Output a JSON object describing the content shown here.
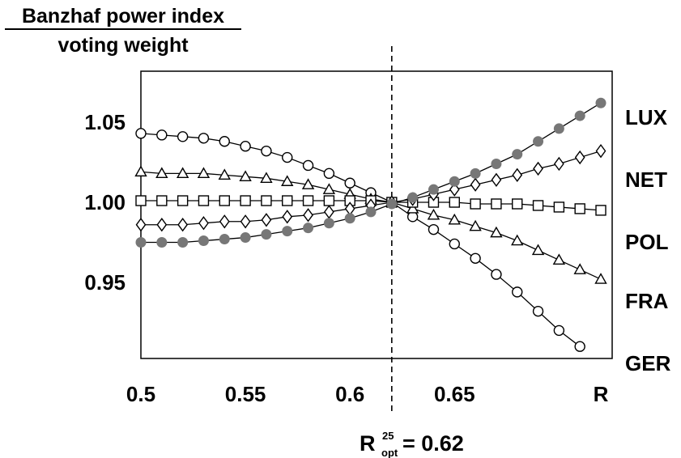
{
  "chart_data": {
    "type": "line",
    "ylabel_numerator": "Banzhaf power index",
    "ylabel_denominator": "voting weight",
    "xlim": [
      0.5,
      0.72
    ],
    "ylim": [
      0.91,
      1.08
    ],
    "x_ticks": [
      {
        "value": 0.5,
        "label": "0.5"
      },
      {
        "value": 0.55,
        "label": "0.55"
      },
      {
        "value": 0.6,
        "label": "0.6"
      },
      {
        "value": 0.65,
        "label": "0.65"
      },
      {
        "value": 0.72,
        "label": "R"
      }
    ],
    "y_ticks": [
      {
        "value": 1.05,
        "label": "1.05"
      },
      {
        "value": 1.0,
        "label": "1.00"
      },
      {
        "value": 0.95,
        "label": "0.95"
      }
    ],
    "optimal_line": {
      "x": 0.62,
      "label_base": "R",
      "label_sup": "25",
      "label_sub": "opt",
      "label_value": "= 0.62"
    },
    "x": [
      0.5,
      0.51,
      0.52,
      0.53,
      0.54,
      0.55,
      0.56,
      0.57,
      0.58,
      0.59,
      0.6,
      0.61,
      0.62,
      0.63,
      0.64,
      0.65,
      0.66,
      0.67,
      0.68,
      0.69,
      0.7,
      0.71,
      0.72
    ],
    "series": [
      {
        "name": "GER",
        "marker": "circle-open",
        "values": [
          1.043,
          1.042,
          1.041,
          1.04,
          1.038,
          1.035,
          1.032,
          1.028,
          1.023,
          1.018,
          1.012,
          1.006,
          1.0,
          0.991,
          0.983,
          0.974,
          0.965,
          0.955,
          0.944,
          0.932,
          0.92,
          0.91,
          0.902
        ]
      },
      {
        "name": "FRA",
        "marker": "triangle-open",
        "values": [
          1.019,
          1.018,
          1.018,
          1.018,
          1.017,
          1.016,
          1.015,
          1.013,
          1.011,
          1.008,
          1.005,
          1.002,
          1.0,
          0.996,
          0.992,
          0.989,
          0.985,
          0.981,
          0.976,
          0.97,
          0.964,
          0.958,
          0.952
        ]
      },
      {
        "name": "POL",
        "marker": "square-open",
        "values": [
          1.001,
          1.001,
          1.001,
          1.001,
          1.001,
          1.001,
          1.001,
          1.001,
          1.001,
          1.001,
          1.001,
          1.001,
          1.0,
          1.0,
          1.0,
          1.0,
          0.999,
          0.999,
          0.999,
          0.998,
          0.997,
          0.996,
          0.995
        ]
      },
      {
        "name": "NET",
        "marker": "diamond-open",
        "values": [
          0.986,
          0.986,
          0.986,
          0.987,
          0.988,
          0.988,
          0.989,
          0.991,
          0.992,
          0.994,
          0.996,
          0.998,
          1.0,
          1.002,
          1.005,
          1.008,
          1.011,
          1.014,
          1.017,
          1.021,
          1.024,
          1.028,
          1.032
        ]
      },
      {
        "name": "LUX",
        "marker": "circle-filled",
        "values": [
          0.975,
          0.975,
          0.975,
          0.976,
          0.977,
          0.978,
          0.98,
          0.982,
          0.984,
          0.987,
          0.99,
          0.994,
          0.999,
          1.003,
          1.008,
          1.013,
          1.018,
          1.024,
          1.03,
          1.038,
          1.046,
          1.054,
          1.062
        ]
      }
    ],
    "series_labels": [
      {
        "name": "LUX",
        "text": "LUX"
      },
      {
        "name": "NET",
        "text": "NET"
      },
      {
        "name": "POL",
        "text": "POL"
      },
      {
        "name": "FRA",
        "text": "FRA"
      },
      {
        "name": "GER",
        "text": "GER"
      }
    ],
    "grid": false,
    "colors": {
      "line": "#000000",
      "filled_marker": "#777777"
    }
  }
}
